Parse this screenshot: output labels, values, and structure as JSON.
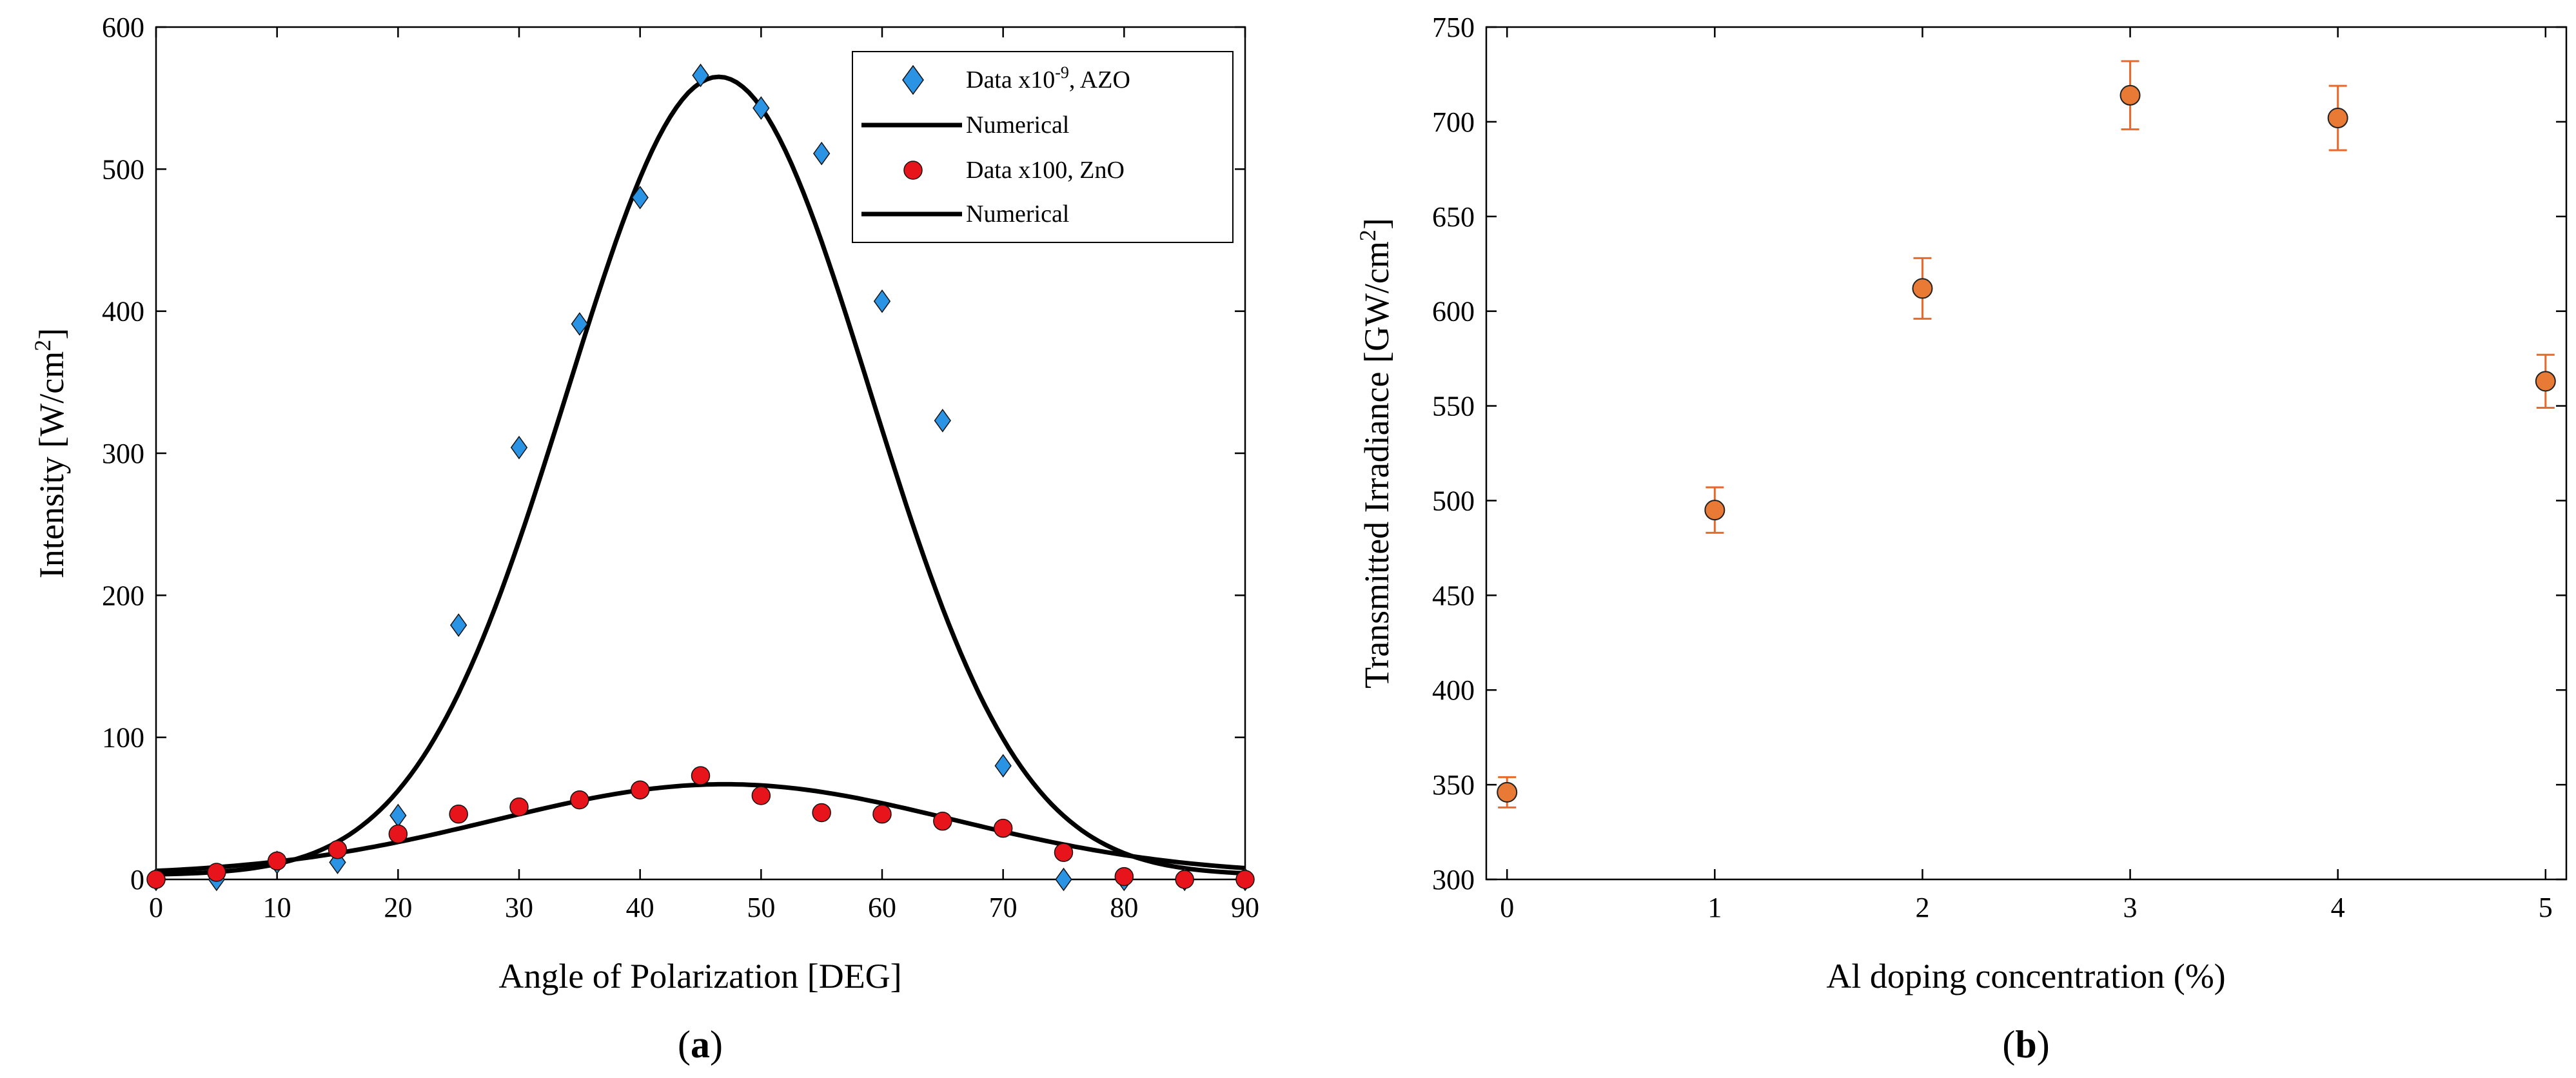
{
  "colors": {
    "azo": "#2a93e3",
    "zno": "#e8141b",
    "doping": "#e87a35",
    "errorbar": "#e8692a",
    "curve": "#000000"
  },
  "panels": {
    "a": {
      "open": "(",
      "letter": "a",
      "close": ")"
    },
    "b": {
      "open": "(",
      "letter": "b",
      "close": ")"
    }
  },
  "chart_data": [
    {
      "id": "a",
      "type": "scatter",
      "xlabel": "Angle of Polarization [DEG]",
      "ylabel": {
        "prefix": "Intensity [W/cm",
        "sup": "2",
        "suffix": "]"
      },
      "xlim": [
        0,
        90
      ],
      "ylim": [
        0,
        600
      ],
      "xticks": [
        0,
        10,
        20,
        30,
        40,
        50,
        60,
        70,
        80,
        90
      ],
      "yticks": [
        0,
        100,
        200,
        300,
        400,
        500,
        600
      ],
      "legend_position": "top-right",
      "legend": [
        {
          "pre": "Data x10",
          "sup": "-9",
          "post": ", AZO"
        },
        {
          "pre": "Numerical",
          "sup": "",
          "post": ""
        },
        {
          "pre": "Data x100, ZnO",
          "sup": "",
          "post": ""
        },
        {
          "pre": "Numerical",
          "sup": "",
          "post": ""
        }
      ],
      "series": [
        {
          "name": "Data x10^-9, AZO",
          "marker": "diamond",
          "x": [
            0,
            5,
            10,
            15,
            20,
            25,
            30,
            35,
            40,
            45,
            50,
            55,
            60,
            65,
            70,
            75,
            80,
            85,
            90
          ],
          "y": [
            0,
            0,
            12,
            12,
            45,
            179,
            304,
            391,
            480,
            566,
            543,
            511,
            407,
            323,
            80,
            0,
            0,
            0,
            0
          ]
        },
        {
          "name": "Numerical (AZO)",
          "marker": "line",
          "model": {
            "amplitude": 562,
            "center": 46.5,
            "sigma": 12.5,
            "offset": 3
          }
        },
        {
          "name": "Data x100, ZnO",
          "marker": "circle",
          "x": [
            0,
            5,
            10,
            15,
            20,
            25,
            30,
            35,
            40,
            45,
            50,
            55,
            60,
            65,
            70,
            75,
            80,
            85,
            90
          ],
          "y": [
            0,
            5,
            13,
            21,
            32,
            46,
            51,
            56,
            63,
            73,
            59,
            47,
            46,
            41,
            36,
            19,
            2,
            0,
            0
          ]
        },
        {
          "name": "Numerical (ZnO)",
          "marker": "line",
          "model": {
            "amplitude": 64,
            "center": 47,
            "sigma": 19,
            "offset": 3
          }
        }
      ]
    },
    {
      "id": "b",
      "type": "scatter",
      "xlabel": "Al doping concentration (%)",
      "ylabel": {
        "prefix": "Transmitted Irradiance [GW/cm",
        "sup": "2",
        "suffix": "]"
      },
      "xlim": [
        -0.1,
        5.1
      ],
      "ylim": [
        300,
        750
      ],
      "xticks": [
        0,
        1,
        2,
        3,
        4,
        5
      ],
      "yticks": [
        300,
        350,
        400,
        450,
        500,
        550,
        600,
        650,
        700,
        750
      ],
      "series": [
        {
          "name": "Transmitted irradiance",
          "marker": "circle",
          "x": [
            0,
            1,
            2,
            3,
            4,
            5
          ],
          "y": [
            346,
            495,
            612,
            714,
            702,
            563
          ],
          "err": [
            8,
            12,
            16,
            18,
            17,
            14
          ]
        }
      ]
    }
  ]
}
